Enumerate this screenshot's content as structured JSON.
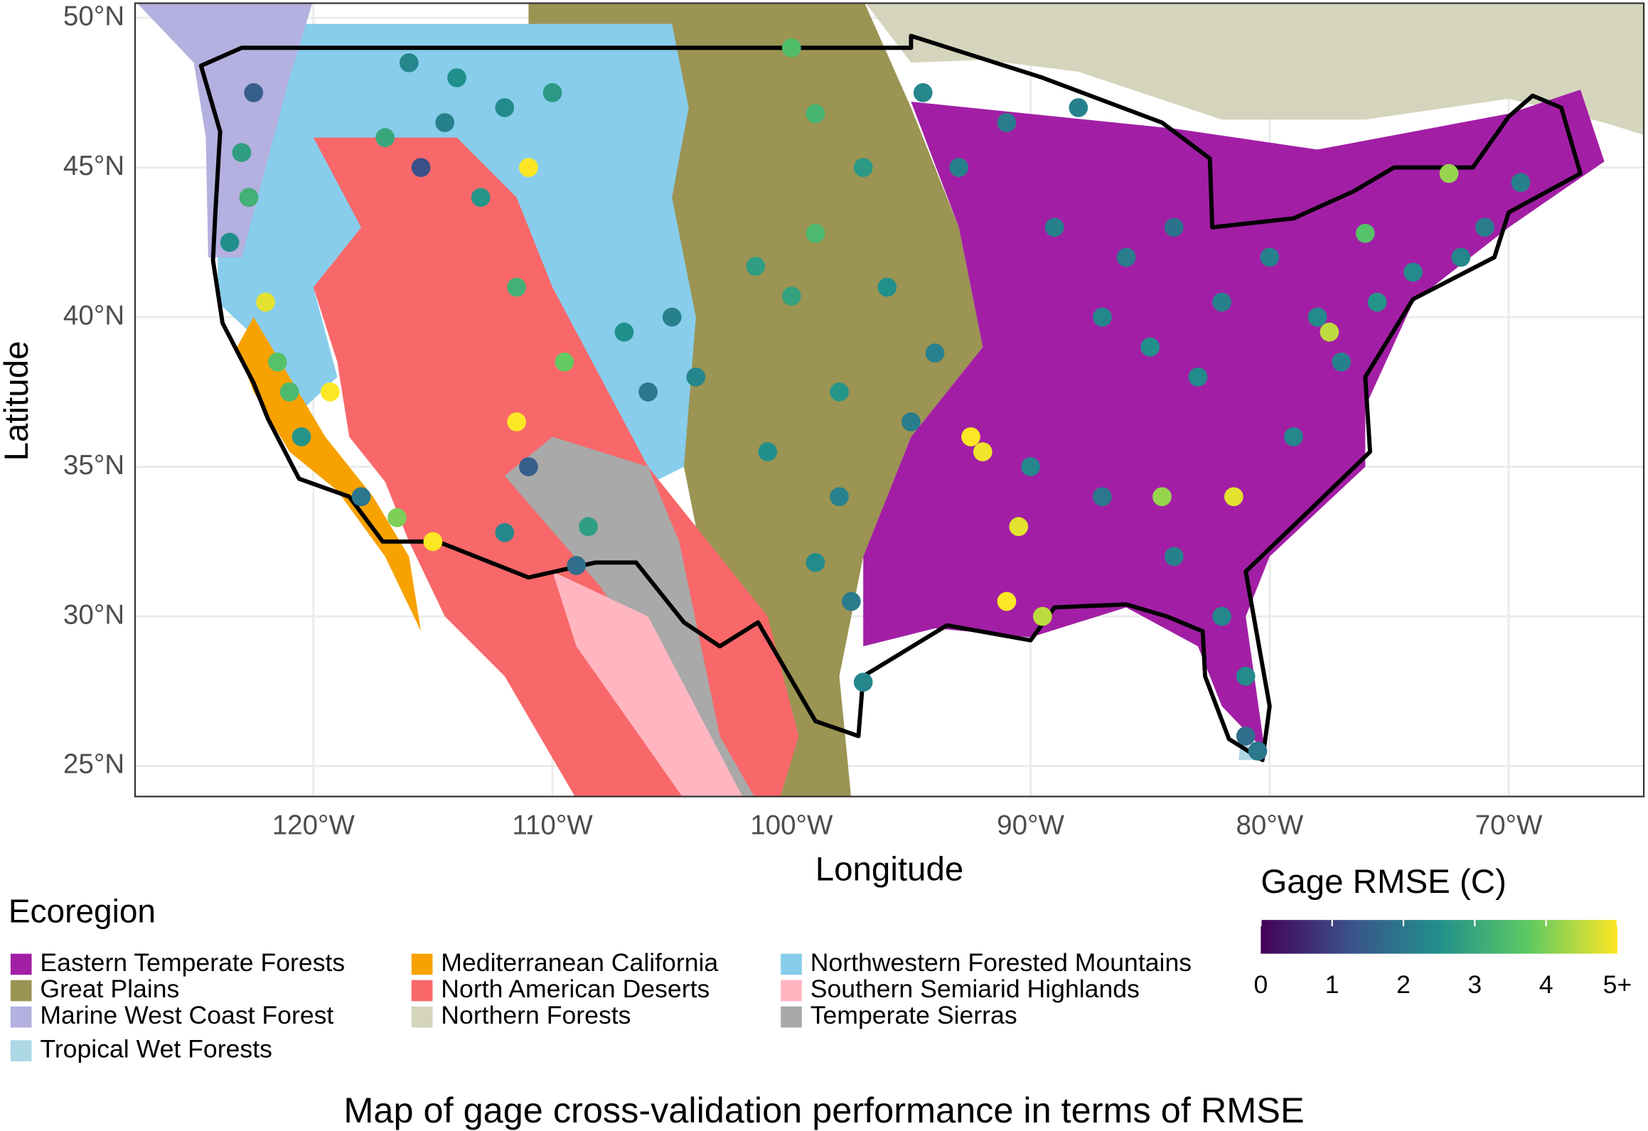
{
  "chart_data": {
    "type": "map",
    "xlabel": "Longitude",
    "ylabel": "Latitude",
    "caption": "Map of gage cross-validation performance in terms of RMSE",
    "xlim": [
      -127.46,
      -64.35
    ],
    "ylim": [
      23.98,
      50.49
    ],
    "xticks": [
      {
        "value": -120,
        "label": "120°W"
      },
      {
        "value": -110,
        "label": "110°W"
      },
      {
        "value": -100,
        "label": "100°W"
      },
      {
        "value": -90,
        "label": "90°W"
      },
      {
        "value": -80,
        "label": "80°W"
      },
      {
        "value": -70,
        "label": "70°W"
      }
    ],
    "yticks": [
      {
        "value": 25,
        "label": "25°N"
      },
      {
        "value": 30,
        "label": "30°N"
      },
      {
        "value": 35,
        "label": "35°N"
      },
      {
        "value": 40,
        "label": "40°N"
      },
      {
        "value": 45,
        "label": "45°N"
      },
      {
        "value": 50,
        "label": "50°N"
      }
    ],
    "grid": true,
    "legend": {
      "title": "Ecoregion",
      "items": [
        {
          "name": "Eastern Temperate Forests",
          "color": "#a21fa5"
        },
        {
          "name": "Great Plains",
          "color": "#9b9453"
        },
        {
          "name": "Marine West Coast Forest",
          "color": "#b4b0df"
        },
        {
          "name": "Tropical Wet Forests",
          "color": "#add8e6"
        },
        {
          "name": "Mediterranean California",
          "color": "#f7a200"
        },
        {
          "name": "North American Deserts",
          "color": "#f8686a"
        },
        {
          "name": "Northern Forests",
          "color": "#d5d5bd"
        },
        {
          "name": "Northwestern Forested Mountains",
          "color": "#88cdeb"
        },
        {
          "name": "Southern Semiarid Highlands",
          "color": "#ffb6c1"
        },
        {
          "name": "Temperate Sierras",
          "color": "#a9a9a9"
        }
      ]
    },
    "colorbar": {
      "title": "Gage RMSE (C)",
      "lim": [
        0,
        5
      ],
      "ticks": [
        0,
        1,
        2,
        3,
        4,
        {
          "value": 5,
          "label": "5+"
        }
      ],
      "colors": [
        "#440154",
        "#3b528b",
        "#21908c",
        "#5dc963",
        "#fde725"
      ]
    },
    "x": [
      -122.5,
      -123,
      -122.7,
      -123.5,
      -122,
      -121.5,
      -121,
      -119.3,
      -120.5,
      -118,
      -116.5,
      -115,
      -116,
      -114,
      -112,
      -115.5,
      -111,
      -114.5,
      -117,
      -113,
      -110,
      -111.5,
      -109.5,
      -107,
      -105,
      -106,
      -104,
      -111.5,
      -111,
      -108.5,
      -109,
      -112,
      -100,
      -99,
      -97,
      -99,
      -101.5,
      -100,
      -98,
      -101,
      -98,
      -99,
      -97.5,
      -97,
      -95,
      -94,
      -93,
      -91,
      -89,
      -86,
      -84,
      -87,
      -85,
      -82,
      -83,
      -92.5,
      -92,
      -90,
      -90.5,
      -91,
      -89.5,
      -87,
      -84.5,
      -81.5,
      -84,
      -82,
      -81,
      -81,
      -80.5,
      -79,
      -77,
      -78,
      -77.5,
      -75.5,
      -74,
      -72,
      -71,
      -69.5,
      -72.5,
      -76,
      -80,
      -88,
      -94.5,
      -96
    ],
    "y": [
      47.5,
      45.5,
      44,
      42.5,
      40.5,
      38.5,
      37.5,
      37.5,
      36,
      34,
      33.3,
      32.5,
      48.5,
      48,
      47,
      45,
      45,
      46.5,
      46,
      44,
      47.5,
      41,
      38.5,
      39.5,
      40,
      37.5,
      38,
      36.5,
      35,
      33,
      31.7,
      32.8,
      49,
      46.8,
      45,
      42.8,
      41.7,
      40.7,
      37.5,
      35.5,
      34,
      31.8,
      30.5,
      27.8,
      36.5,
      38.8,
      45,
      46.5,
      43,
      42,
      43,
      40,
      39,
      40.5,
      38,
      36,
      35.5,
      35,
      33,
      30.5,
      30,
      34,
      34,
      34,
      32,
      30,
      28,
      26,
      25.5,
      36,
      38.5,
      40,
      39.5,
      40.5,
      41.5,
      42,
      43,
      44.5,
      44.8,
      42.8,
      42,
      47,
      47.5,
      41
    ],
    "values": [
      1.5,
      2.8,
      3.2,
      2.5,
      4.8,
      3.6,
      3.4,
      5,
      2.6,
      2,
      4,
      5,
      2.3,
      2.5,
      2.4,
      1.2,
      5,
      2.2,
      3,
      2.6,
      2.7,
      3.2,
      3.8,
      2.5,
      2.2,
      2,
      2.3,
      5,
      1.5,
      2.8,
      1.8,
      2.3,
      3.5,
      3.3,
      2.7,
      3.4,
      2.8,
      2.9,
      2.6,
      2.5,
      2.2,
      2.4,
      2.1,
      2.3,
      2.1,
      2.2,
      2.2,
      2.1,
      2.2,
      2.1,
      1.9,
      2.3,
      2.5,
      2.2,
      2.4,
      5,
      4.9,
      2.3,
      4.8,
      5,
      4.5,
      2,
      4.2,
      4.8,
      2.2,
      2.3,
      2.4,
      1.8,
      2,
      2.3,
      2.2,
      2.4,
      4.5,
      2.6,
      2.4,
      2.3,
      2.1,
      2.2,
      4.2,
      3.6,
      2.2,
      2.2,
      2.3,
      2.5
    ]
  }
}
